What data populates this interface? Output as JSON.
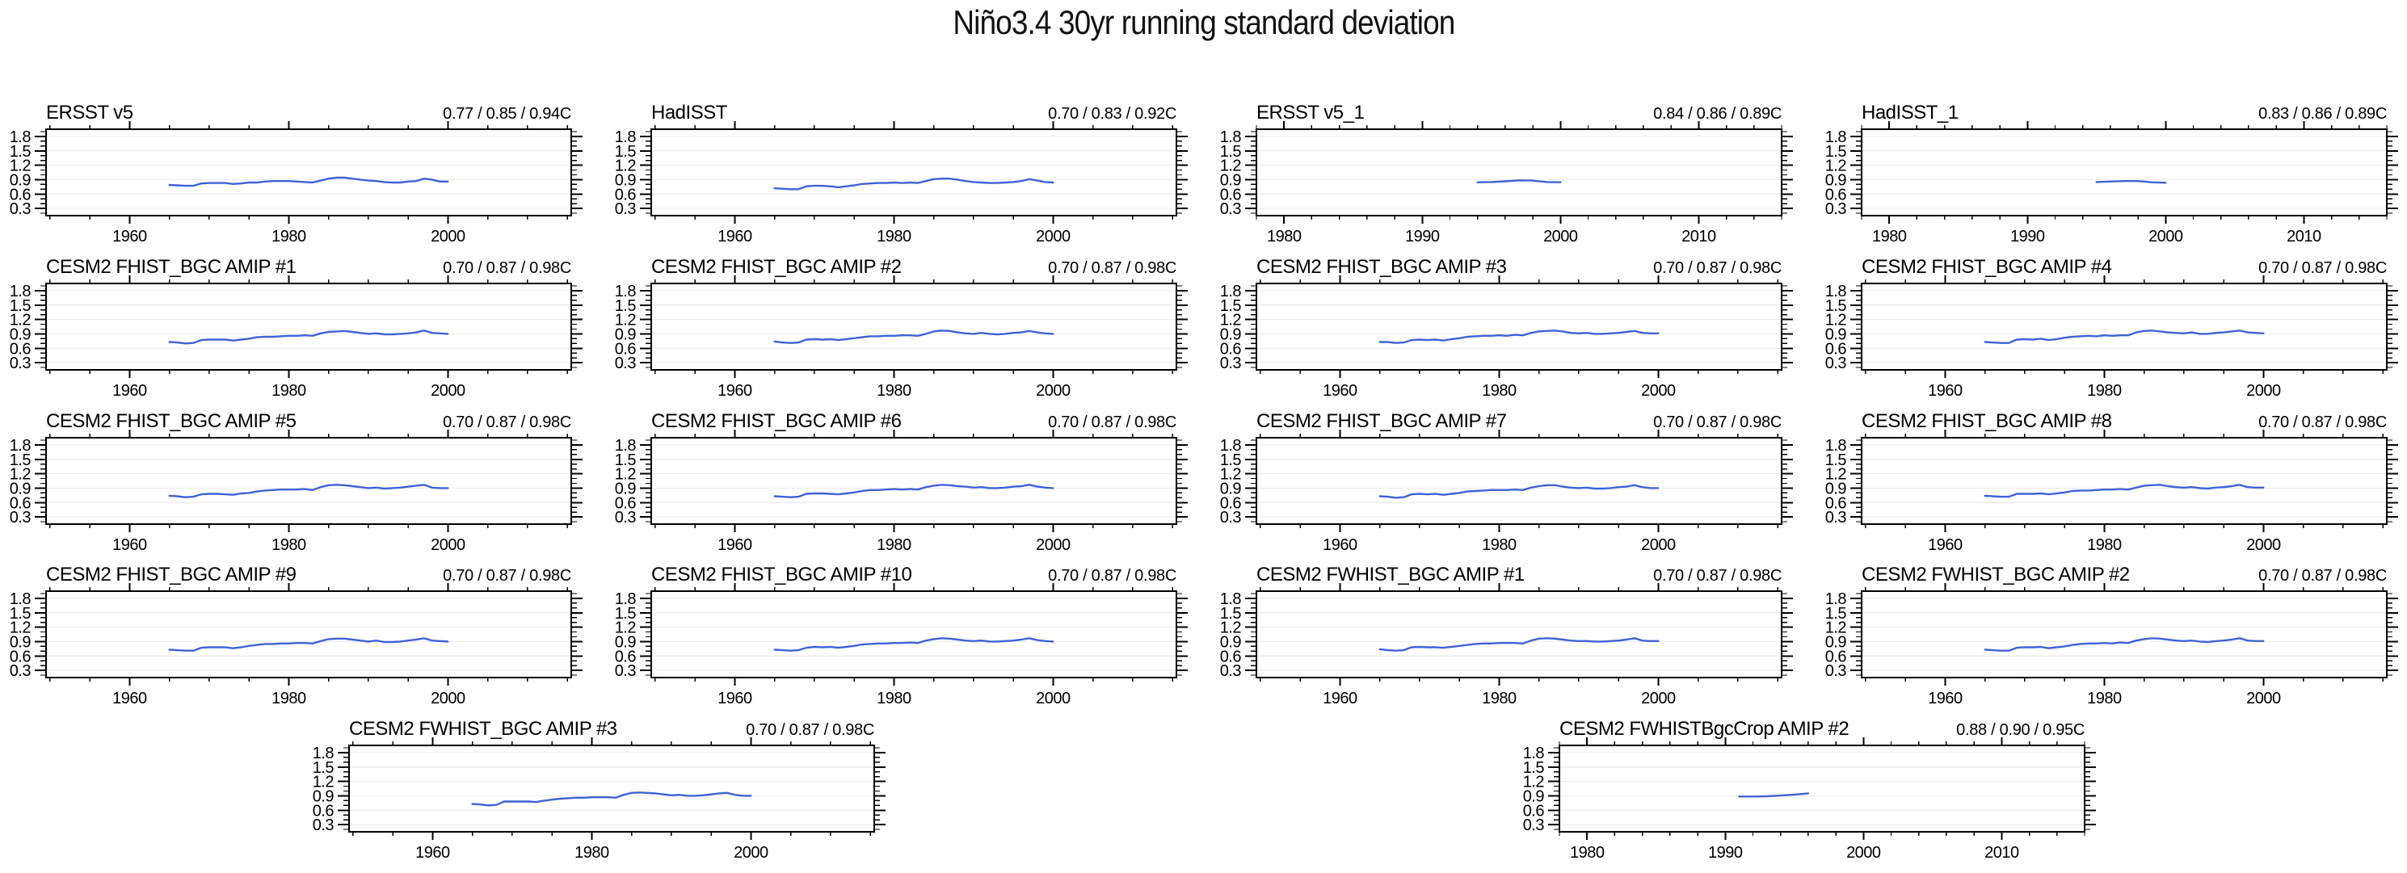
{
  "title": "Niño3.4 30yr running standard deviation",
  "chart_data": {
    "type": "line",
    "line_color": "#3E63D6",
    "grid_color": "#ececec",
    "axis_color": "#000000",
    "grid": true,
    "legend": "none",
    "ylabel": "",
    "xlabel": "",
    "y_major_ticks": [
      0.3,
      0.6,
      0.9,
      1.2,
      1.5,
      1.8
    ],
    "ylim": [
      0.15,
      1.95
    ],
    "y_minor_step": 0.1,
    "axes": {
      "A": {
        "range": [
          1949.5,
          2015.5
        ],
        "major": [
          1960,
          1980,
          2000
        ],
        "minor_step": 5
      },
      "B": {
        "range": [
          1978,
          2016
        ],
        "major": [
          1980,
          1990,
          2000,
          2010
        ],
        "minor_step": 2
      }
    },
    "panels": [
      {
        "title": "ERSST v5",
        "stats": "0.77 / 0.85 / 0.94C",
        "axis": "A",
        "row": 0,
        "col": 0,
        "x_start": 1965,
        "values": [
          0.79,
          0.78,
          0.77,
          0.77,
          0.82,
          0.83,
          0.83,
          0.83,
          0.81,
          0.82,
          0.84,
          0.84,
          0.86,
          0.87,
          0.87,
          0.87,
          0.86,
          0.85,
          0.84,
          0.88,
          0.92,
          0.94,
          0.94,
          0.92,
          0.9,
          0.88,
          0.87,
          0.85,
          0.84,
          0.84,
          0.86,
          0.87,
          0.92,
          0.9,
          0.86,
          0.86
        ]
      },
      {
        "title": "HadISST",
        "stats": "0.70 / 0.83 / 0.92C",
        "axis": "A",
        "row": 0,
        "col": 1,
        "x_start": 1965,
        "values": [
          0.72,
          0.71,
          0.7,
          0.7,
          0.76,
          0.77,
          0.77,
          0.76,
          0.74,
          0.76,
          0.78,
          0.81,
          0.82,
          0.83,
          0.83,
          0.84,
          0.83,
          0.84,
          0.83,
          0.87,
          0.91,
          0.92,
          0.92,
          0.9,
          0.87,
          0.85,
          0.84,
          0.83,
          0.83,
          0.84,
          0.85,
          0.87,
          0.91,
          0.88,
          0.85,
          0.84
        ]
      },
      {
        "title": "ERSST v5_1",
        "stats": "0.84 / 0.86 / 0.89C",
        "axis": "B",
        "row": 0,
        "col": 2,
        "x_start": 1994,
        "values": [
          0.845,
          0.85,
          0.865,
          0.885,
          0.88,
          0.85,
          0.845
        ]
      },
      {
        "title": "HadISST_1",
        "stats": "0.83 / 0.86 / 0.89C",
        "axis": "B",
        "row": 0,
        "col": 3,
        "x_start": 1995,
        "values": [
          0.85,
          0.86,
          0.87,
          0.87,
          0.845,
          0.835
        ]
      },
      {
        "title": "CESM2 FHIST_BGC AMIP #1",
        "stats": "0.70 / 0.87 / 0.98C",
        "axis": "A",
        "row": 1,
        "col": 0,
        "x_start": 1965,
        "values": [
          0.73,
          0.72,
          0.7,
          0.71,
          0.77,
          0.78,
          0.78,
          0.78,
          0.76,
          0.78,
          0.8,
          0.83,
          0.84,
          0.84,
          0.85,
          0.86,
          0.86,
          0.87,
          0.86,
          0.91,
          0.94,
          0.95,
          0.96,
          0.94,
          0.92,
          0.9,
          0.91,
          0.89,
          0.89,
          0.9,
          0.91,
          0.93,
          0.97,
          0.92,
          0.91,
          0.9
        ]
      },
      {
        "title": "CESM2 FHIST_BGC AMIP #2",
        "stats": "0.70 / 0.87 / 0.98C",
        "axis": "A",
        "row": 1,
        "col": 1,
        "x_start": 1965,
        "values": [
          0.74,
          0.72,
          0.71,
          0.72,
          0.78,
          0.79,
          0.78,
          0.79,
          0.77,
          0.79,
          0.81,
          0.83,
          0.85,
          0.85,
          0.86,
          0.86,
          0.87,
          0.87,
          0.86,
          0.9,
          0.95,
          0.97,
          0.96,
          0.93,
          0.91,
          0.9,
          0.92,
          0.9,
          0.89,
          0.9,
          0.92,
          0.93,
          0.96,
          0.93,
          0.91,
          0.9
        ]
      },
      {
        "title": "CESM2 FHIST_BGC AMIP #3",
        "stats": "0.70 / 0.87 / 0.98C",
        "axis": "A",
        "row": 1,
        "col": 2,
        "x_start": 1965,
        "values": [
          0.73,
          0.73,
          0.71,
          0.72,
          0.77,
          0.78,
          0.77,
          0.78,
          0.76,
          0.79,
          0.81,
          0.84,
          0.85,
          0.86,
          0.86,
          0.87,
          0.86,
          0.88,
          0.87,
          0.92,
          0.95,
          0.96,
          0.97,
          0.95,
          0.92,
          0.91,
          0.92,
          0.9,
          0.9,
          0.91,
          0.92,
          0.94,
          0.96,
          0.92,
          0.91,
          0.91
        ]
      },
      {
        "title": "CESM2 FHIST_BGC AMIP #4",
        "stats": "0.70 / 0.87 / 0.98C",
        "axis": "A",
        "row": 1,
        "col": 3,
        "x_start": 1965,
        "values": [
          0.73,
          0.72,
          0.71,
          0.71,
          0.78,
          0.79,
          0.78,
          0.8,
          0.77,
          0.79,
          0.82,
          0.84,
          0.85,
          0.86,
          0.85,
          0.87,
          0.86,
          0.87,
          0.87,
          0.93,
          0.96,
          0.97,
          0.95,
          0.93,
          0.92,
          0.91,
          0.93,
          0.9,
          0.9,
          0.92,
          0.93,
          0.95,
          0.97,
          0.93,
          0.92,
          0.91
        ]
      },
      {
        "title": "CESM2 FHIST_BGC AMIP #5",
        "stats": "0.70 / 0.87 / 0.98C",
        "axis": "A",
        "row": 2,
        "col": 0,
        "x_start": 1965,
        "values": [
          0.74,
          0.73,
          0.71,
          0.72,
          0.77,
          0.78,
          0.78,
          0.77,
          0.76,
          0.79,
          0.8,
          0.83,
          0.85,
          0.86,
          0.87,
          0.87,
          0.87,
          0.88,
          0.86,
          0.92,
          0.96,
          0.97,
          0.96,
          0.94,
          0.92,
          0.9,
          0.91,
          0.89,
          0.9,
          0.91,
          0.93,
          0.95,
          0.97,
          0.91,
          0.9,
          0.9
        ]
      },
      {
        "title": "CESM2 FHIST_BGC AMIP #6",
        "stats": "0.70 / 0.87 / 0.98C",
        "axis": "A",
        "row": 2,
        "col": 1,
        "x_start": 1965,
        "values": [
          0.73,
          0.72,
          0.71,
          0.72,
          0.78,
          0.79,
          0.79,
          0.78,
          0.77,
          0.79,
          0.81,
          0.84,
          0.86,
          0.86,
          0.87,
          0.88,
          0.87,
          0.88,
          0.87,
          0.92,
          0.95,
          0.97,
          0.96,
          0.94,
          0.93,
          0.91,
          0.92,
          0.9,
          0.9,
          0.91,
          0.93,
          0.94,
          0.97,
          0.93,
          0.91,
          0.9
        ]
      },
      {
        "title": "CESM2 FHIST_BGC AMIP #7",
        "stats": "0.70 / 0.87 / 0.98C",
        "axis": "A",
        "row": 2,
        "col": 2,
        "x_start": 1965,
        "values": [
          0.73,
          0.72,
          0.7,
          0.71,
          0.77,
          0.78,
          0.77,
          0.78,
          0.76,
          0.78,
          0.8,
          0.83,
          0.84,
          0.85,
          0.86,
          0.86,
          0.86,
          0.87,
          0.86,
          0.91,
          0.94,
          0.96,
          0.96,
          0.93,
          0.91,
          0.9,
          0.91,
          0.89,
          0.89,
          0.9,
          0.92,
          0.93,
          0.96,
          0.92,
          0.9,
          0.9
        ]
      },
      {
        "title": "CESM2 FHIST_BGC AMIP #8",
        "stats": "0.70 / 0.87 / 0.98C",
        "axis": "A",
        "row": 2,
        "col": 3,
        "x_start": 1965,
        "values": [
          0.74,
          0.73,
          0.72,
          0.72,
          0.78,
          0.78,
          0.78,
          0.79,
          0.77,
          0.79,
          0.81,
          0.84,
          0.85,
          0.85,
          0.86,
          0.87,
          0.87,
          0.88,
          0.87,
          0.91,
          0.95,
          0.96,
          0.97,
          0.94,
          0.92,
          0.91,
          0.92,
          0.9,
          0.89,
          0.91,
          0.92,
          0.94,
          0.97,
          0.92,
          0.91,
          0.91
        ]
      },
      {
        "title": "CESM2 FHIST_BGC AMIP #9",
        "stats": "0.70 / 0.87 / 0.98C",
        "axis": "A",
        "row": 3,
        "col": 0,
        "x_start": 1965,
        "values": [
          0.73,
          0.72,
          0.71,
          0.71,
          0.77,
          0.78,
          0.78,
          0.78,
          0.76,
          0.78,
          0.81,
          0.83,
          0.85,
          0.85,
          0.86,
          0.86,
          0.87,
          0.87,
          0.86,
          0.91,
          0.95,
          0.96,
          0.96,
          0.94,
          0.92,
          0.9,
          0.92,
          0.89,
          0.89,
          0.9,
          0.92,
          0.94,
          0.97,
          0.92,
          0.91,
          0.9
        ]
      },
      {
        "title": "CESM2 FHIST_BGC AMIP #10",
        "stats": "0.70 / 0.87 / 0.98C",
        "axis": "A",
        "row": 3,
        "col": 1,
        "x_start": 1965,
        "values": [
          0.73,
          0.72,
          0.71,
          0.72,
          0.77,
          0.79,
          0.78,
          0.79,
          0.77,
          0.79,
          0.81,
          0.84,
          0.85,
          0.86,
          0.86,
          0.87,
          0.87,
          0.88,
          0.87,
          0.92,
          0.95,
          0.97,
          0.96,
          0.94,
          0.92,
          0.91,
          0.92,
          0.9,
          0.9,
          0.91,
          0.92,
          0.94,
          0.97,
          0.93,
          0.91,
          0.9
        ]
      },
      {
        "title": "CESM2 FWHIST_BGC AMIP #1",
        "stats": "0.70 / 0.87 / 0.98C",
        "axis": "A",
        "row": 3,
        "col": 2,
        "x_start": 1965,
        "values": [
          0.74,
          0.72,
          0.71,
          0.72,
          0.78,
          0.79,
          0.78,
          0.78,
          0.77,
          0.79,
          0.81,
          0.83,
          0.85,
          0.86,
          0.86,
          0.87,
          0.87,
          0.87,
          0.86,
          0.92,
          0.96,
          0.97,
          0.96,
          0.94,
          0.92,
          0.91,
          0.91,
          0.9,
          0.9,
          0.91,
          0.92,
          0.94,
          0.97,
          0.92,
          0.91,
          0.91
        ]
      },
      {
        "title": "CESM2 FWHIST_BGC AMIP #2",
        "stats": "0.70 / 0.87 / 0.98C",
        "axis": "A",
        "row": 3,
        "col": 3,
        "x_start": 1965,
        "values": [
          0.73,
          0.72,
          0.71,
          0.71,
          0.77,
          0.78,
          0.78,
          0.79,
          0.76,
          0.78,
          0.8,
          0.83,
          0.85,
          0.86,
          0.86,
          0.87,
          0.86,
          0.88,
          0.87,
          0.92,
          0.95,
          0.97,
          0.96,
          0.94,
          0.92,
          0.91,
          0.92,
          0.9,
          0.89,
          0.91,
          0.92,
          0.94,
          0.97,
          0.92,
          0.91,
          0.91
        ]
      },
      {
        "title": "CESM2 FWHIST_BGC AMIP #3",
        "stats": "0.70 / 0.87 / 0.98C",
        "axis": "A",
        "row": 4,
        "col": 0.5,
        "x_start": 1965,
        "values": [
          0.73,
          0.72,
          0.7,
          0.71,
          0.78,
          0.78,
          0.78,
          0.78,
          0.77,
          0.8,
          0.82,
          0.84,
          0.85,
          0.86,
          0.86,
          0.87,
          0.87,
          0.87,
          0.86,
          0.92,
          0.96,
          0.97,
          0.96,
          0.95,
          0.93,
          0.91,
          0.92,
          0.9,
          0.9,
          0.91,
          0.93,
          0.95,
          0.96,
          0.92,
          0.9,
          0.9
        ]
      },
      {
        "title": "CESM2 FWHISTBgcCrop AMIP #2",
        "stats": "0.88 / 0.90 / 0.95C",
        "axis": "B",
        "row": 4,
        "col": 2.5,
        "x_start": 1991,
        "values": [
          0.885,
          0.885,
          0.89,
          0.905,
          0.925,
          0.95
        ]
      }
    ]
  }
}
